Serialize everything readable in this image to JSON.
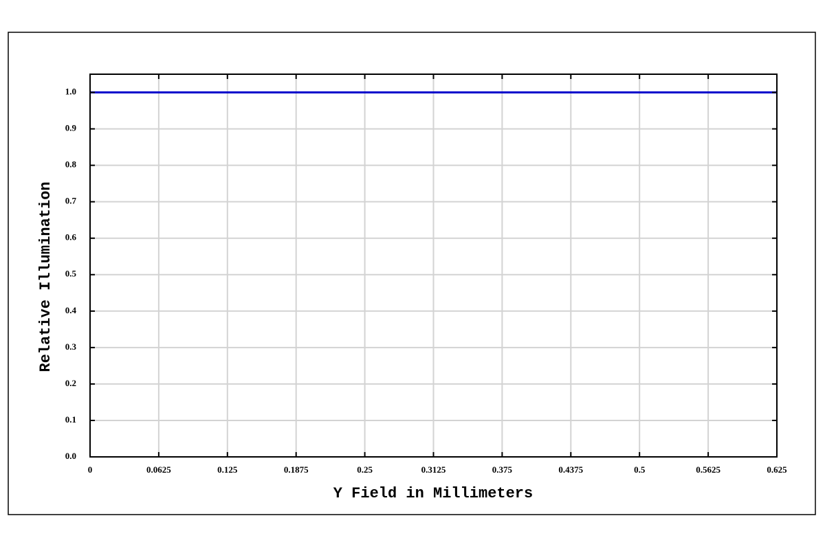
{
  "chart_data": {
    "type": "line",
    "x_label": "Y Field in Millimeters",
    "y_label": "Relative Illumination",
    "x": [
      0,
      0.0625,
      0.125,
      0.1875,
      0.25,
      0.3125,
      0.375,
      0.4375,
      0.5,
      0.5625,
      0.625
    ],
    "series": [
      {
        "color": "#0000cc",
        "values": [
          1,
          1,
          1,
          1,
          1,
          1,
          1,
          1,
          1,
          1,
          1
        ]
      }
    ],
    "xlim": [
      0,
      0.625
    ],
    "ylim": [
      0,
      1.05
    ],
    "xticks": [
      0,
      0.0625,
      0.125,
      0.1875,
      0.25,
      0.3125,
      0.375,
      0.4375,
      0.5,
      0.5625,
      0.625
    ],
    "yticks": [
      {
        "value": 0,
        "label": "0.0"
      },
      0.1,
      0.2,
      0.3,
      0.4,
      0.5,
      0.6,
      0.7,
      0.8,
      0.9,
      {
        "value": 1,
        "label": "1.0"
      }
    ],
    "grid": true
  }
}
